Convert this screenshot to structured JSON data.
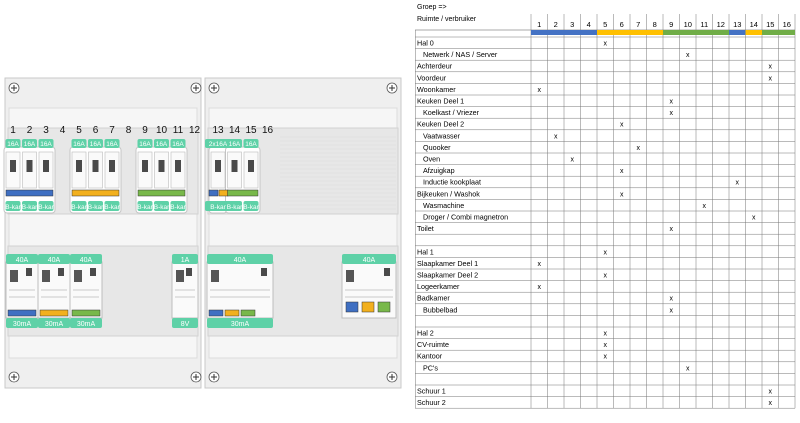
{
  "panel": {
    "top_numbers": [
      "1",
      "2",
      "3",
      "4",
      "5",
      "6",
      "7",
      "8",
      "9",
      "10",
      "11",
      "12",
      "13",
      "14",
      "15",
      "16"
    ],
    "row1_amp_labels": [
      {
        "col": 1,
        "text": "16A"
      },
      {
        "col": 2,
        "text": "16A"
      },
      {
        "col": 3,
        "text": "16A"
      },
      {
        "col": 5,
        "text": "16A"
      },
      {
        "col": 6,
        "text": "16A"
      },
      {
        "col": 7,
        "text": "16A"
      },
      {
        "col": 9,
        "text": "16A"
      },
      {
        "col": 10,
        "text": "16A"
      },
      {
        "col": 11,
        "text": "16A"
      },
      {
        "col": 13,
        "text": "2x16A"
      },
      {
        "col": 14,
        "text": "16A"
      },
      {
        "col": 15,
        "text": "16A"
      }
    ],
    "row1_type_labels": [
      {
        "col": 1,
        "text": "B-kar"
      },
      {
        "col": 2,
        "text": "B-kar"
      },
      {
        "col": 3,
        "text": "B-kar"
      },
      {
        "col": 5,
        "text": "B-kar"
      },
      {
        "col": 6,
        "text": "B-kar"
      },
      {
        "col": 7,
        "text": "B-kar"
      },
      {
        "col": 9,
        "text": "B-kar"
      },
      {
        "col": 10,
        "text": "B-kar"
      },
      {
        "col": 11,
        "text": "B-kar"
      },
      {
        "col": 13,
        "text": "B-kar"
      },
      {
        "col": 14,
        "text": "B-kar"
      },
      {
        "col": 15,
        "text": "B-kar"
      }
    ],
    "row2_top_labels": [
      "40A",
      "40A",
      "40A",
      "1A",
      "40A",
      "40A"
    ],
    "row2_bottom_labels": [
      "30mA",
      "30mA",
      "30mA",
      "8V",
      "30mA"
    ],
    "colors": {
      "blue": "#3f6fc2",
      "orange": "#f2b01e",
      "green": "#78b84a",
      "mint": "#5ed1a7"
    }
  },
  "table": {
    "header_line1": "Groep =>",
    "header_line2": "Ruimte / verbruiker",
    "columns": [
      "1",
      "2",
      "3",
      "4",
      "5",
      "6",
      "7",
      "8",
      "9",
      "10",
      "11",
      "12",
      "13",
      "14",
      "15",
      "16"
    ],
    "mark": "x",
    "rows": [
      {
        "label": "Hal 0",
        "indent": false,
        "x": [
          5
        ]
      },
      {
        "label": "Netwerk / NAS / Server",
        "indent": true,
        "x": [
          10
        ]
      },
      {
        "label": "Achterdeur",
        "indent": false,
        "x": [
          15
        ]
      },
      {
        "label": "Voordeur",
        "indent": false,
        "x": [
          15
        ]
      },
      {
        "label": "Woonkamer",
        "indent": false,
        "x": [
          1
        ]
      },
      {
        "label": "Keuken Deel 1",
        "indent": false,
        "x": [
          9
        ]
      },
      {
        "label": "Koelkast / Vriezer",
        "indent": true,
        "x": [
          9
        ]
      },
      {
        "label": "Keuken Deel 2",
        "indent": false,
        "x": [
          6
        ]
      },
      {
        "label": "Vaatwasser",
        "indent": true,
        "x": [
          2
        ]
      },
      {
        "label": "Quooker",
        "indent": true,
        "x": [
          7
        ]
      },
      {
        "label": "Oven",
        "indent": true,
        "x": [
          3
        ]
      },
      {
        "label": "Afzuigkap",
        "indent": true,
        "x": [
          6
        ]
      },
      {
        "label": "Inductie kookplaat",
        "indent": true,
        "x": [
          13
        ]
      },
      {
        "label": "Bijkeuken / Washok",
        "indent": false,
        "x": [
          6
        ]
      },
      {
        "label": "Wasmachine",
        "indent": true,
        "x": [
          11
        ]
      },
      {
        "label": "Droger / Combi magnetron",
        "indent": true,
        "x": [
          14
        ]
      },
      {
        "label": "Toilet",
        "indent": false,
        "x": [
          9
        ]
      },
      {
        "label": "",
        "indent": false,
        "x": []
      },
      {
        "label": "Hal 1",
        "indent": false,
        "x": [
          5
        ]
      },
      {
        "label": "Slaapkamer Deel 1",
        "indent": false,
        "x": [
          1
        ]
      },
      {
        "label": "Slaapkamer Deel 2",
        "indent": false,
        "x": [
          5
        ]
      },
      {
        "label": "Logeerkamer",
        "indent": false,
        "x": [
          1
        ]
      },
      {
        "label": "Badkamer",
        "indent": false,
        "x": [
          9
        ]
      },
      {
        "label": "Bubbelbad",
        "indent": true,
        "x": [
          9
        ]
      },
      {
        "label": "",
        "indent": false,
        "x": []
      },
      {
        "label": "Hal 2",
        "indent": false,
        "x": [
          5
        ]
      },
      {
        "label": "CV-ruimte",
        "indent": false,
        "x": [
          5
        ]
      },
      {
        "label": "Kantoor",
        "indent": false,
        "x": [
          5
        ]
      },
      {
        "label": "PC's",
        "indent": true,
        "x": [
          10
        ]
      },
      {
        "label": "",
        "indent": false,
        "x": []
      },
      {
        "label": "Schuur 1",
        "indent": false,
        "x": [
          15
        ]
      },
      {
        "label": "Schuur 2",
        "indent": false,
        "x": [
          15
        ]
      }
    ],
    "group_colors": [
      "#4472c4",
      "#4472c4",
      "#4472c4",
      "#4472c4",
      "#ffc000",
      "#ffc000",
      "#ffc000",
      "#ffc000",
      "#70ad47",
      "#70ad47",
      "#70ad47",
      "#70ad47",
      "#4472c4",
      "#ffc000",
      "#70ad47",
      "#70ad47"
    ]
  }
}
